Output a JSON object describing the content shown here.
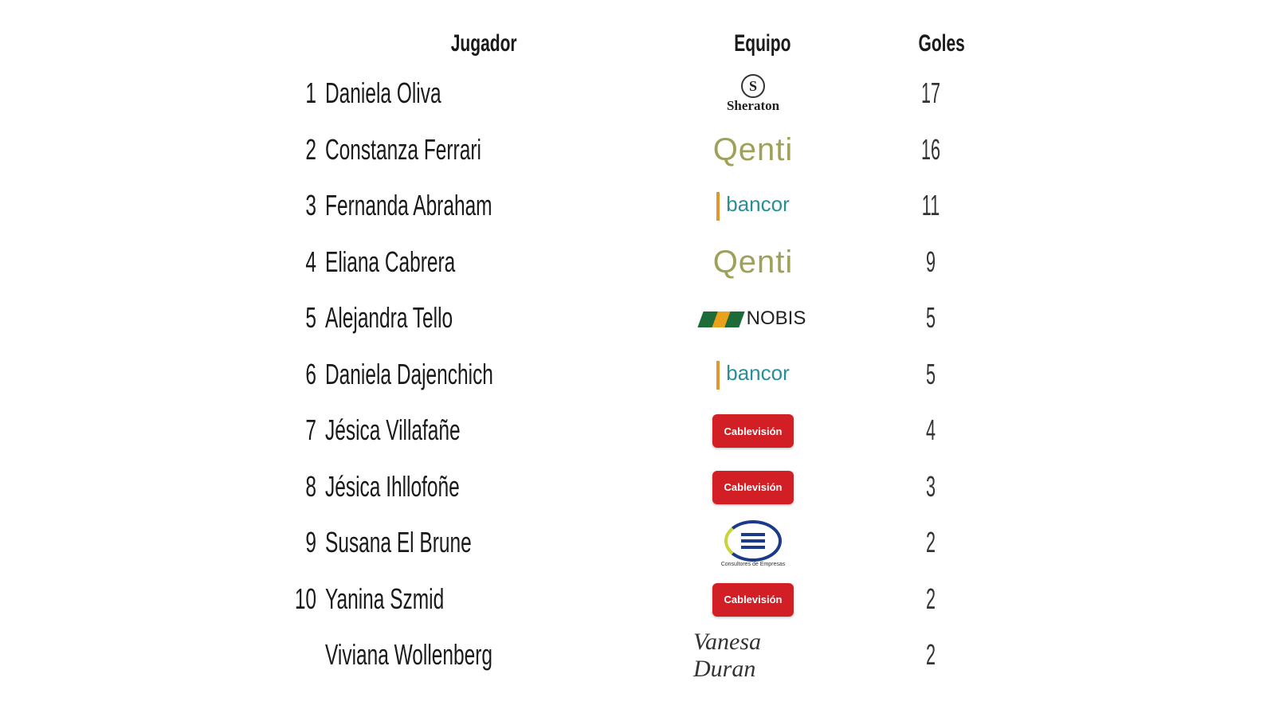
{
  "headers": {
    "player": "Jugador",
    "team": "Equipo",
    "goals": "Goles"
  },
  "rows": [
    {
      "rank": "1",
      "name": "Daniela Oliva",
      "team": "Sheraton",
      "logo": "sheraton",
      "goals": "17"
    },
    {
      "rank": "2",
      "name": "Constanza Ferrari",
      "team": "Qenti",
      "logo": "enti",
      "goals": "16"
    },
    {
      "rank": "3",
      "name": "Fernanda Abraham",
      "team": "bancor",
      "logo": "bancor",
      "goals": "11"
    },
    {
      "rank": "4",
      "name": "Eliana Cabrera",
      "team": "Qenti",
      "logo": "enti",
      "goals": "9"
    },
    {
      "rank": "5",
      "name": "Alejandra Tello",
      "team": "NOBIS",
      "logo": "nobis",
      "goals": "5"
    },
    {
      "rank": "6",
      "name": "Daniela Dajenchich",
      "team": "bancor",
      "logo": "bancor",
      "goals": "5"
    },
    {
      "rank": "7",
      "name": "Jésica Villafañe",
      "team": "Cablevisión",
      "logo": "cable",
      "goals": "4"
    },
    {
      "rank": "8",
      "name": "Jésica Ihllofoñe",
      "team": "Cablevisión",
      "logo": "cable",
      "goals": "3"
    },
    {
      "rank": "9",
      "name": "Susana El Brune",
      "team": "Consultores de Empresas",
      "logo": "cde",
      "goals": "2"
    },
    {
      "rank": "10",
      "name": "Yanina Szmid",
      "team": "Cablevisión",
      "logo": "cable",
      "goals": "2"
    },
    {
      "rank": "",
      "name": "Viviana Wollenberg",
      "team": "Vanesa Duran",
      "logo": "vanesa",
      "goals": "2"
    }
  ],
  "colors": {
    "cablevision": "#d21f26",
    "bancor": "#2a8e96",
    "enti": "#9fa15a",
    "nobis": "#1e6b3a"
  }
}
